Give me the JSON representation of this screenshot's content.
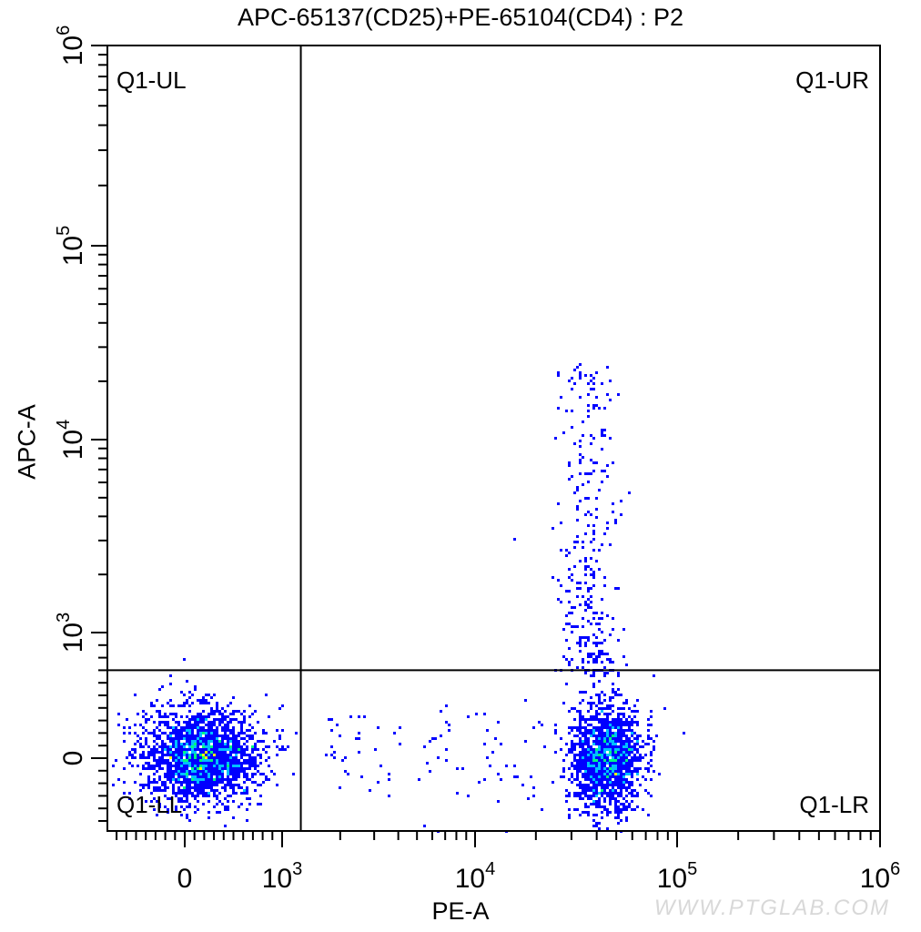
{
  "chart_data": {
    "type": "scatter",
    "title": "APC-65137(CD25)+PE-65104(CD4) : P2",
    "xlabel": "PE-A",
    "ylabel": "APC-A",
    "x_scale": "biexponential",
    "y_scale": "biexponential",
    "x_ticks": [
      {
        "value": 0,
        "label": "0"
      },
      {
        "value": 1000,
        "label": "10",
        "exp": "3"
      },
      {
        "value": 10000,
        "label": "10",
        "exp": "4"
      },
      {
        "value": 100000,
        "label": "10",
        "exp": "5"
      },
      {
        "value": 1000000,
        "label": "10",
        "exp": "6"
      }
    ],
    "y_ticks": [
      {
        "value": 0,
        "label": "0"
      },
      {
        "value": 1000,
        "label": "10",
        "exp": "3"
      },
      {
        "value": 10000,
        "label": "10",
        "exp": "4"
      },
      {
        "value": 100000,
        "label": "10",
        "exp": "5"
      },
      {
        "value": 1000000,
        "label": "10",
        "exp": "6"
      }
    ],
    "xlim": [
      -800,
      1000000
    ],
    "ylim": [
      -580,
      1000000
    ],
    "quadrant_gate": {
      "x": 1250,
      "y": 700
    },
    "quadrants": {
      "ul": "Q1-UL",
      "ur": "Q1-UR",
      "ll": "Q1-LL",
      "lr": "Q1-LR"
    },
    "populations": [
      {
        "quadrant": "Q1-LL",
        "center_x": 150,
        "center_y": 30,
        "events": 2200
      },
      {
        "quadrant": "Q1-LR",
        "center_x": 44000,
        "center_y": 20,
        "events": 1600
      },
      {
        "quadrant": "Q1-UR",
        "center_x": 36000,
        "center_y": 3000,
        "events": 320
      },
      {
        "quadrant": "scattered",
        "center_x": 5000,
        "center_y": 50,
        "events": 90
      }
    ],
    "colormap": [
      "#0000ff",
      "#00bfff",
      "#00ff80",
      "#ffff00",
      "#ff0000"
    ],
    "grid": false
  },
  "watermark": "WWW.PTGLAB.COM"
}
